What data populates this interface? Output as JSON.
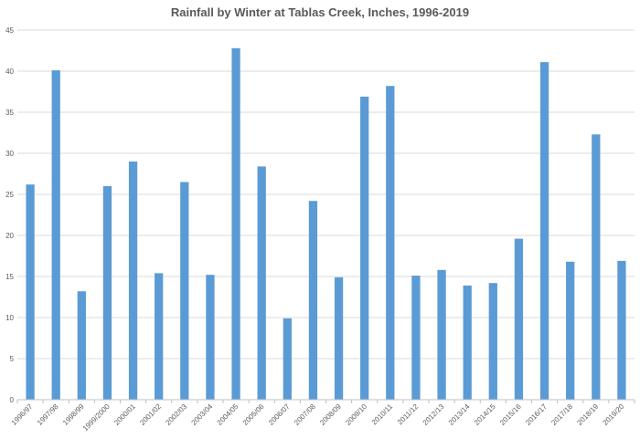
{
  "chart_data": {
    "type": "bar",
    "title": "Rainfall by Winter at Tablas Creek, Inches, 1996-2019",
    "xlabel": "",
    "ylabel": "",
    "ylim": [
      0,
      45
    ],
    "yticks": [
      0,
      5,
      10,
      15,
      20,
      25,
      30,
      35,
      40,
      45
    ],
    "grid": true,
    "legend": "none",
    "bar_color": "#5b9bd5",
    "categories": [
      "1996/97",
      "1997/98",
      "1998/99",
      "1999/2000",
      "2000/01",
      "2001/02",
      "2002/03",
      "2003/04",
      "2004/05",
      "2005/06",
      "2006/07",
      "2007/08",
      "2008/09",
      "2009/10",
      "2010/11",
      "2011/12",
      "2012/13",
      "2013/14",
      "2014/15",
      "2015/16",
      "2016/17",
      "2017/18",
      "2018/19",
      "2019/20"
    ],
    "values": [
      26.2,
      40.1,
      13.2,
      26.0,
      29.0,
      15.4,
      26.5,
      15.2,
      42.8,
      28.4,
      9.9,
      24.2,
      14.9,
      36.9,
      38.2,
      15.1,
      15.8,
      13.9,
      14.2,
      19.6,
      41.1,
      16.8,
      32.3,
      16.9
    ]
  }
}
